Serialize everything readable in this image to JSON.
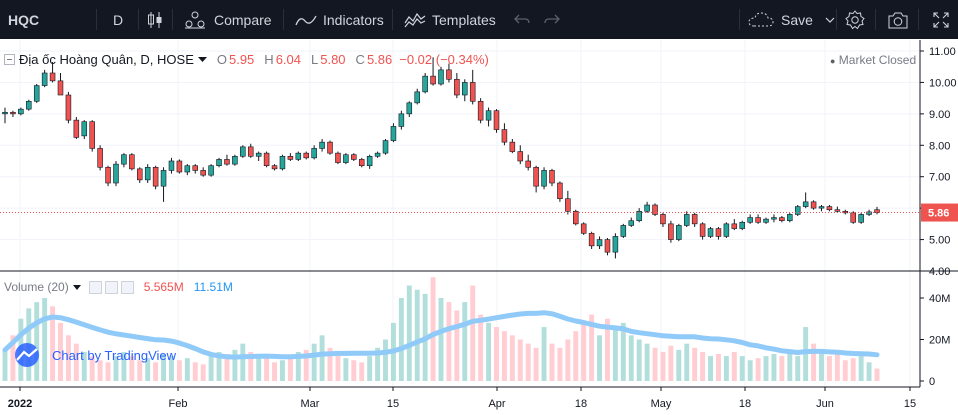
{
  "toolbar": {
    "symbol": "HQC",
    "interval": "D",
    "compare_label": "Compare",
    "indicators_label": "Indicators",
    "templates_label": "Templates",
    "save_label": "Save"
  },
  "legend": {
    "title": "Địa ốc Hoàng Quân, D, HOSE",
    "open_label": "O",
    "open": "5.95",
    "high_label": "H",
    "high": "6.04",
    "low_label": "L",
    "low": "5.80",
    "close_label": "C",
    "close": "5.86",
    "change": "−0.02 (−0.34%)"
  },
  "market_status": "Market Closed",
  "last_price_label": "5.86",
  "volume_legend": {
    "title": "Volume (20)",
    "volume": "5.565M",
    "ma": "11.51M"
  },
  "watermark": "Chart by TradingView",
  "colors": {
    "up": "#26a69a",
    "down": "#ef5350",
    "volume_up": "#b2dfdb",
    "volume_down": "#ffcdd2",
    "volume_ma": "#90caf9",
    "toolbar_bg": "#131722"
  },
  "chart_data": [
    {
      "type": "candlestick",
      "price_axis_ticks": [
        "11.00",
        "10.00",
        "9.00",
        "8.00",
        "7.00",
        "6.00",
        "5.00",
        "4.00"
      ],
      "ylim": [
        4.0,
        11.0
      ],
      "time_axis_labels": [
        "2022",
        "Feb",
        "Mar",
        "15",
        "Apr",
        "18",
        "May",
        "18",
        "Jun",
        "15"
      ],
      "last_price": 5.86,
      "ohlc": [
        [
          9.0,
          9.2,
          8.7,
          9.05
        ],
        [
          9.05,
          9.1,
          8.9,
          9.0
        ],
        [
          9.0,
          9.2,
          8.95,
          9.15
        ],
        [
          9.15,
          9.45,
          9.1,
          9.4
        ],
        [
          9.4,
          9.95,
          9.35,
          9.9
        ],
        [
          9.9,
          10.4,
          9.85,
          10.3
        ],
        [
          10.3,
          10.65,
          10.0,
          10.05
        ],
        [
          10.05,
          10.3,
          9.6,
          9.6
        ],
        [
          9.6,
          9.7,
          8.7,
          8.8
        ],
        [
          8.8,
          8.9,
          8.2,
          8.25
        ],
        [
          8.3,
          8.8,
          8.2,
          8.75
        ],
        [
          8.75,
          8.8,
          7.8,
          7.9
        ],
        [
          7.9,
          8.0,
          7.2,
          7.3
        ],
        [
          7.3,
          7.35,
          6.7,
          6.8
        ],
        [
          6.8,
          7.5,
          6.7,
          7.4
        ],
        [
          7.4,
          7.75,
          7.3,
          7.7
        ],
        [
          7.7,
          7.75,
          7.2,
          7.25
        ],
        [
          7.25,
          7.3,
          6.8,
          6.9
        ],
        [
          6.9,
          7.4,
          6.8,
          7.3
        ],
        [
          7.3,
          7.35,
          6.6,
          6.7
        ],
        [
          6.7,
          7.3,
          6.2,
          7.2
        ],
        [
          7.2,
          7.6,
          7.1,
          7.5
        ],
        [
          7.5,
          7.55,
          7.1,
          7.15
        ],
        [
          7.15,
          7.4,
          7.05,
          7.35
        ],
        [
          7.35,
          7.4,
          7.1,
          7.2
        ],
        [
          7.2,
          7.3,
          7.0,
          7.05
        ],
        [
          7.05,
          7.4,
          7.0,
          7.35
        ],
        [
          7.35,
          7.6,
          7.3,
          7.55
        ],
        [
          7.55,
          7.7,
          7.35,
          7.4
        ],
        [
          7.4,
          7.7,
          7.35,
          7.65
        ],
        [
          7.65,
          8.0,
          7.6,
          7.95
        ],
        [
          7.95,
          8.05,
          7.6,
          7.65
        ],
        [
          7.65,
          7.8,
          7.5,
          7.75
        ],
        [
          7.75,
          7.8,
          7.3,
          7.35
        ],
        [
          7.35,
          7.4,
          7.2,
          7.25
        ],
        [
          7.25,
          7.7,
          7.2,
          7.65
        ],
        [
          7.65,
          7.75,
          7.5,
          7.55
        ],
        [
          7.55,
          7.8,
          7.5,
          7.75
        ],
        [
          7.75,
          7.8,
          7.55,
          7.6
        ],
        [
          7.6,
          8.0,
          7.55,
          7.9
        ],
        [
          7.9,
          8.2,
          7.8,
          8.1
        ],
        [
          8.1,
          8.15,
          7.7,
          7.75
        ],
        [
          7.75,
          7.8,
          7.4,
          7.45
        ],
        [
          7.45,
          7.75,
          7.4,
          7.7
        ],
        [
          7.7,
          7.75,
          7.5,
          7.55
        ],
        [
          7.55,
          7.6,
          7.3,
          7.35
        ],
        [
          7.35,
          7.7,
          7.25,
          7.65
        ],
        [
          7.65,
          7.8,
          7.6,
          7.75
        ],
        [
          7.75,
          8.2,
          7.7,
          8.15
        ],
        [
          8.15,
          8.7,
          8.1,
          8.6
        ],
        [
          8.6,
          9.1,
          8.5,
          9.0
        ],
        [
          9.0,
          9.4,
          8.9,
          9.35
        ],
        [
          9.35,
          9.8,
          9.3,
          9.7
        ],
        [
          9.7,
          10.3,
          9.65,
          10.2
        ],
        [
          10.2,
          10.8,
          9.9,
          9.95
        ],
        [
          9.95,
          10.5,
          9.9,
          10.4
        ],
        [
          10.4,
          10.6,
          10.0,
          10.1
        ],
        [
          10.1,
          10.3,
          9.5,
          9.6
        ],
        [
          9.6,
          10.1,
          9.4,
          10.0
        ],
        [
          10.0,
          10.4,
          9.3,
          9.4
        ],
        [
          9.4,
          9.5,
          8.7,
          8.8
        ],
        [
          8.8,
          9.2,
          8.6,
          9.1
        ],
        [
          9.1,
          9.15,
          8.4,
          8.5
        ],
        [
          8.5,
          8.7,
          8.0,
          8.1
        ],
        [
          8.1,
          8.2,
          7.75,
          7.8
        ],
        [
          7.8,
          8.0,
          7.4,
          7.5
        ],
        [
          7.5,
          7.7,
          7.2,
          7.3
        ],
        [
          7.3,
          7.35,
          6.5,
          6.7
        ],
        [
          6.7,
          7.3,
          6.6,
          7.2
        ],
        [
          7.2,
          7.25,
          6.7,
          6.8
        ],
        [
          6.8,
          6.85,
          6.2,
          6.3
        ],
        [
          6.3,
          6.55,
          5.8,
          5.9
        ],
        [
          5.9,
          5.95,
          5.45,
          5.5
        ],
        [
          5.5,
          5.55,
          5.15,
          5.2
        ],
        [
          5.2,
          5.25,
          4.7,
          4.8
        ],
        [
          4.8,
          5.1,
          4.7,
          5.0
        ],
        [
          5.0,
          5.05,
          4.5,
          4.6
        ],
        [
          4.6,
          5.2,
          4.4,
          5.1
        ],
        [
          5.1,
          5.5,
          5.05,
          5.45
        ],
        [
          5.45,
          5.7,
          5.4,
          5.6
        ],
        [
          5.6,
          6.0,
          5.55,
          5.9
        ],
        [
          5.9,
          6.2,
          5.85,
          6.1
        ],
        [
          6.1,
          6.15,
          5.75,
          5.8
        ],
        [
          5.8,
          5.85,
          5.4,
          5.5
        ],
        [
          5.5,
          5.6,
          4.9,
          5.0
        ],
        [
          5.0,
          5.5,
          4.95,
          5.45
        ],
        [
          5.45,
          5.9,
          5.4,
          5.8
        ],
        [
          5.8,
          5.85,
          5.4,
          5.5
        ],
        [
          5.5,
          5.55,
          5.0,
          5.1
        ],
        [
          5.1,
          5.4,
          5.05,
          5.35
        ],
        [
          5.35,
          5.4,
          5.0,
          5.1
        ],
        [
          5.1,
          5.55,
          5.05,
          5.5
        ],
        [
          5.5,
          5.65,
          5.3,
          5.35
        ],
        [
          5.35,
          5.6,
          5.3,
          5.55
        ],
        [
          5.55,
          5.8,
          5.5,
          5.7
        ],
        [
          5.7,
          5.8,
          5.5,
          5.55
        ],
        [
          5.55,
          5.7,
          5.5,
          5.65
        ],
        [
          5.65,
          5.8,
          5.55,
          5.7
        ],
        [
          5.7,
          5.75,
          5.55,
          5.6
        ],
        [
          5.6,
          5.85,
          5.55,
          5.8
        ],
        [
          5.8,
          6.1,
          5.75,
          6.05
        ],
        [
          6.05,
          6.5,
          6.0,
          6.2
        ],
        [
          6.2,
          6.25,
          5.95,
          6.0
        ],
        [
          6.0,
          6.1,
          5.9,
          6.05
        ],
        [
          6.05,
          6.1,
          5.9,
          5.95
        ],
        [
          5.95,
          6.05,
          5.85,
          5.9
        ],
        [
          5.9,
          5.95,
          5.8,
          5.85
        ],
        [
          5.85,
          5.9,
          5.5,
          5.55
        ],
        [
          5.55,
          5.85,
          5.5,
          5.8
        ],
        [
          5.8,
          5.95,
          5.75,
          5.88
        ],
        [
          5.95,
          6.04,
          5.8,
          5.86
        ]
      ]
    },
    {
      "type": "bar",
      "title": "Volume (20)",
      "volume_axis_ticks": [
        "40M",
        "20M",
        "0"
      ],
      "ylim": [
        0,
        50
      ],
      "values": [
        15,
        22,
        30,
        35,
        38,
        40,
        36,
        28,
        22,
        18,
        14,
        12,
        10,
        9,
        12,
        14,
        12,
        10,
        11,
        9,
        13,
        12,
        10,
        11,
        9,
        8,
        12,
        14,
        13,
        15,
        18,
        14,
        12,
        11,
        9,
        10,
        12,
        14,
        15,
        18,
        22,
        16,
        13,
        11,
        10,
        9,
        12,
        16,
        20,
        28,
        40,
        46,
        44,
        42,
        50,
        40,
        38,
        34,
        38,
        46,
        32,
        28,
        26,
        24,
        22,
        20,
        18,
        16,
        26,
        18,
        16,
        20,
        24,
        28,
        32,
        22,
        30,
        26,
        28,
        22,
        20,
        18,
        16,
        14,
        17,
        15,
        18,
        16,
        14,
        12,
        13,
        12,
        14,
        12,
        10,
        11,
        12,
        13,
        12,
        14,
        12,
        26,
        18,
        14,
        12,
        13,
        10,
        11,
        12,
        9,
        6
      ]
    }
  ]
}
